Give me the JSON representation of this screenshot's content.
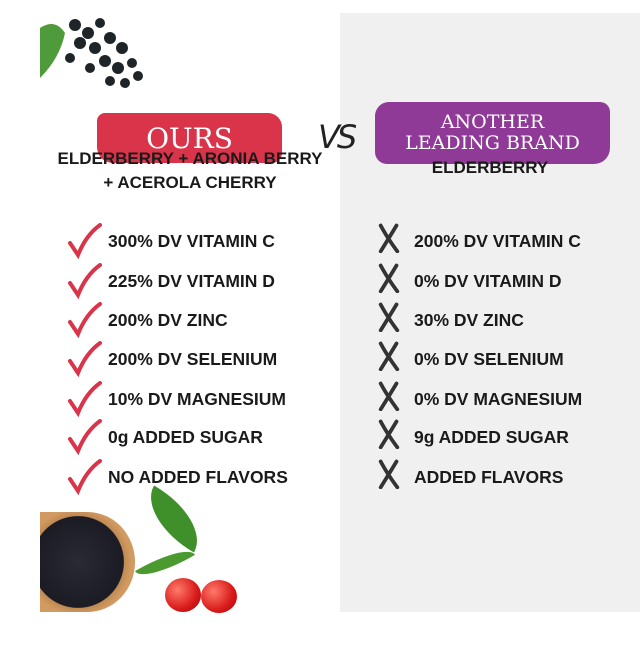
{
  "colors": {
    "ours": "#d9344a",
    "other": "#8e3a96",
    "check": "#d9344a",
    "cross": "#333333",
    "panel": "#f0f0f0"
  },
  "vs_label": "VS",
  "ours": {
    "badge": "OURS",
    "ingredients_line1": "ELDERBERRY + ARONIA BERRY",
    "ingredients_line2": "+ ACEROLA CHERRY",
    "icon": "check-icon",
    "items": [
      "300% DV VITAMIN C",
      "225% DV VITAMIN D",
      "200% DV ZINC",
      "200% DV SELENIUM",
      "10% DV MAGNESIUM",
      "0g ADDED SUGAR",
      "NO ADDED FLAVORS"
    ]
  },
  "other": {
    "badge_line1": "ANOTHER",
    "badge_line2": "LEADING BRAND",
    "ingredients": "ELDERBERRY",
    "icon": "cross-icon",
    "items": [
      "200% DV VITAMIN C",
      "0% DV VITAMIN D",
      "30% DV ZINC",
      "0% DV SELENIUM",
      "0% DV MAGNESIUM",
      "9g ADDED SUGAR",
      "ADDED FLAVORS"
    ]
  }
}
